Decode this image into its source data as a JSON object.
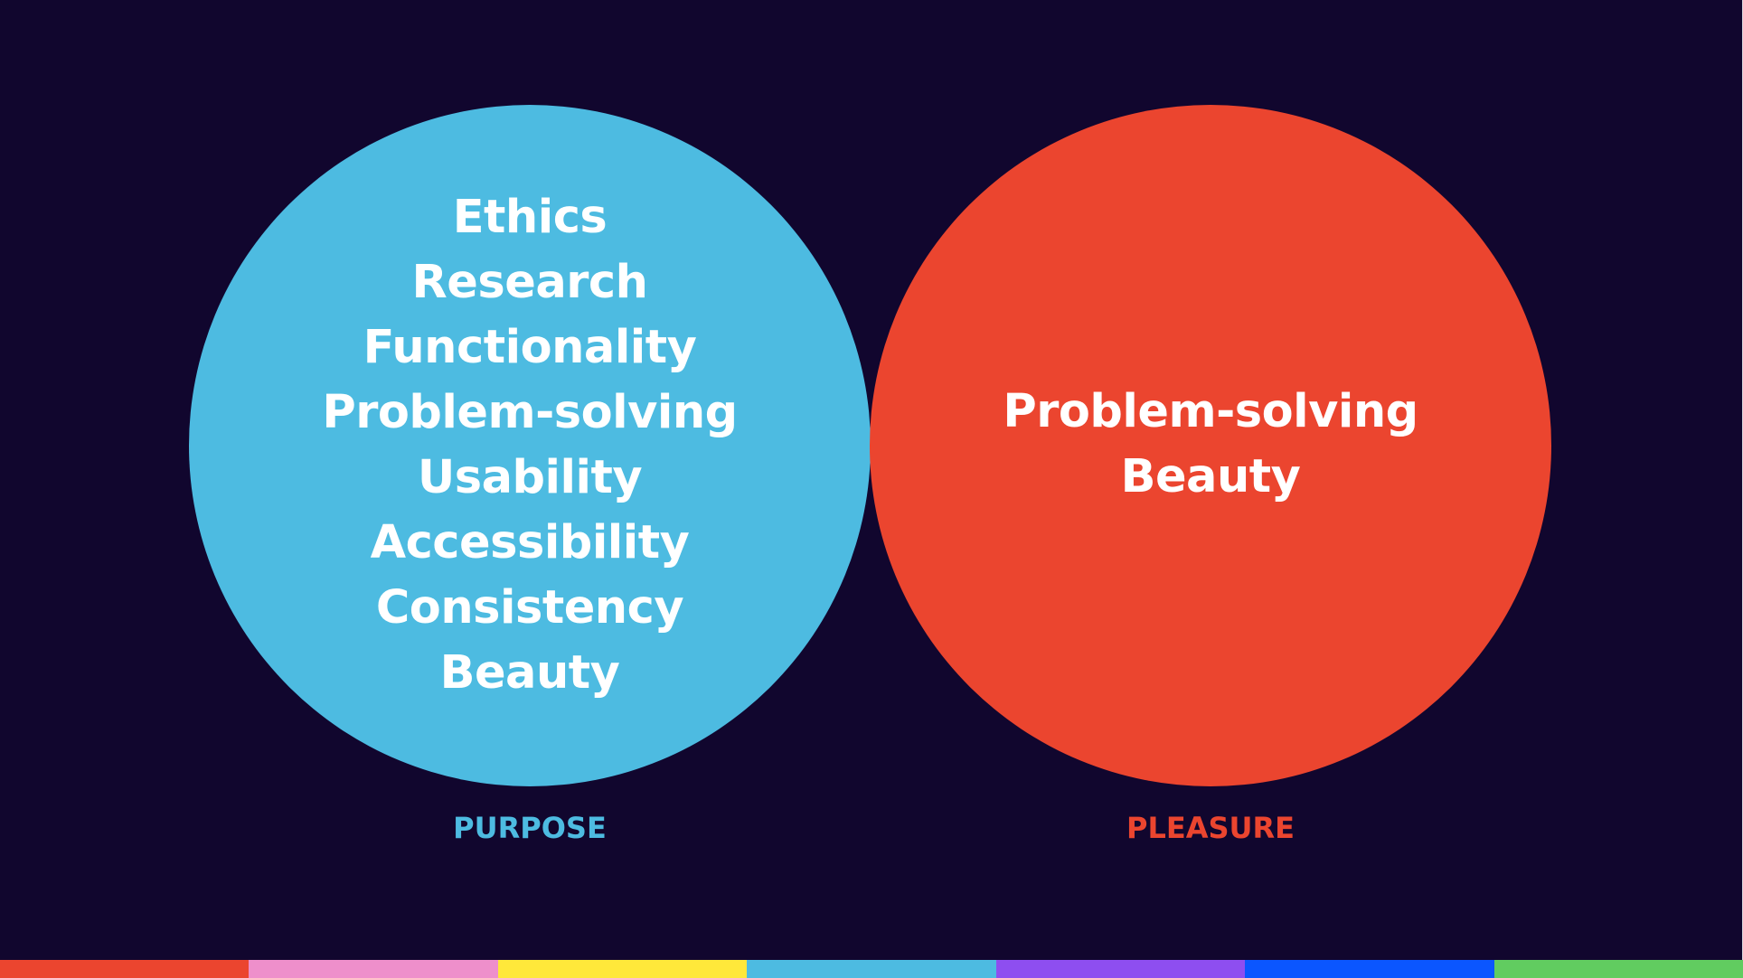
{
  "diagram": {
    "left_circle": {
      "label": "PURPOSE",
      "color": "#4dbbe1",
      "items": [
        "Ethics",
        "Research",
        "Functionality",
        "Problem-solving",
        "Usability",
        "Accessibility",
        "Consistency",
        "Beauty"
      ]
    },
    "right_circle": {
      "label": "PLEASURE",
      "color": "#eb452f",
      "items": [
        "Problem-solving",
        "Beauty"
      ]
    }
  },
  "background_color": "#11062e",
  "color_bar": [
    "#eb452f",
    "#ee8fcb",
    "#ffe83a",
    "#4dbbe1",
    "#8e4ef0",
    "#0b56ff",
    "#61cc60"
  ]
}
